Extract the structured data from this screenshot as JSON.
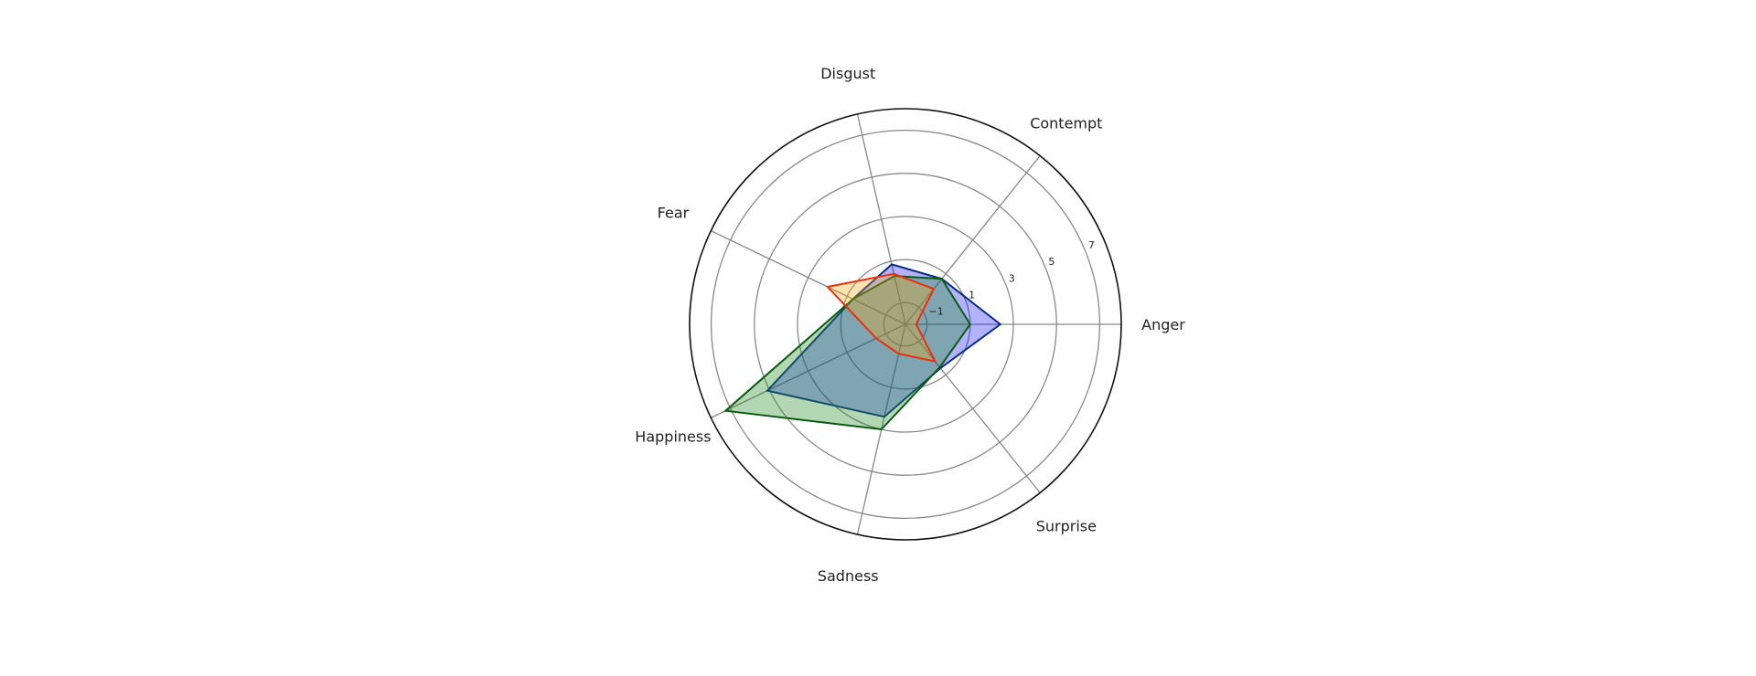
{
  "chart_data": {
    "type": "radar",
    "title": "",
    "categories": [
      "Anger",
      "Contempt",
      "Disgust",
      "Fear",
      "Happiness",
      "Sadness",
      "Surprise"
    ],
    "rlim": [
      -2,
      8
    ],
    "rticks": [
      -1,
      1,
      3,
      5,
      7
    ],
    "rtick_labels": [
      "−1",
      "1",
      "3",
      "5",
      "7"
    ],
    "grid": true,
    "series": [
      {
        "values": [
          2.4,
          0.7,
          0.85,
          0.7,
          5.1,
          2.4,
          0.6
        ],
        "edge_color": "#0a2a8a",
        "fill_color": "#0000ff",
        "fill_opacity": 0.3
      },
      {
        "values": [
          1.0,
          0.7,
          0.3,
          0.7,
          7.25,
          3.0,
          0.55
        ],
        "edge_color": "#0b5a12",
        "fill_color": "#228b22",
        "fill_opacity": 0.35
      },
      {
        "values": [
          -1.5,
          0.1,
          0.4,
          2.0,
          -0.5,
          -0.6,
          0.2
        ],
        "edge_color": "#e8300a",
        "fill_color": "#ffa500",
        "fill_opacity": 0.3
      }
    ]
  }
}
